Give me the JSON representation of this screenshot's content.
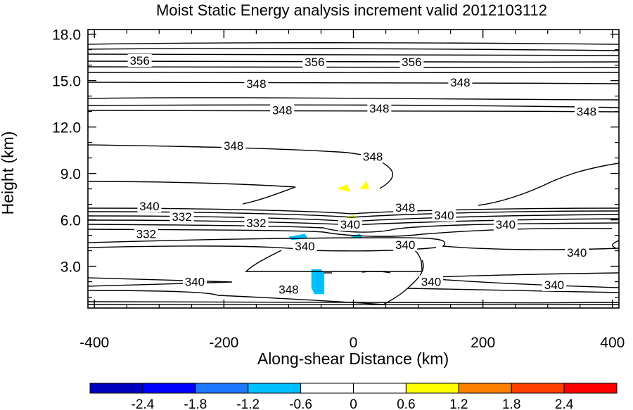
{
  "chart_data": {
    "type": "contour",
    "title": "Moist Static Energy analysis increment valid 2012103112",
    "xlabel": "Along-shear Distance (km)",
    "ylabel": "Height (km)",
    "xlim": [
      -410,
      410
    ],
    "ylim": [
      0.3,
      18.3
    ],
    "x_ticks": [
      -400,
      -200,
      0,
      200,
      400
    ],
    "x_tick_labels": [
      "-400",
      "-200",
      "0",
      "200",
      "400"
    ],
    "y_ticks": [
      3,
      6,
      9,
      12,
      15,
      18
    ],
    "y_tick_labels": [
      "3.0",
      "6.0",
      "9.0",
      "12.0",
      "15.0",
      "18.0"
    ],
    "contour_labels": [
      {
        "text": "356",
        "x": -330,
        "y": 16.3
      },
      {
        "text": "356",
        "x": -60,
        "y": 16.2
      },
      {
        "text": "356",
        "x": 90,
        "y": 16.2
      },
      {
        "text": "348",
        "x": -150,
        "y": 14.8
      },
      {
        "text": "348",
        "x": 165,
        "y": 14.9
      },
      {
        "text": "348",
        "x": -110,
        "y": 13.1
      },
      {
        "text": "348",
        "x": 40,
        "y": 13.2
      },
      {
        "text": "348",
        "x": 360,
        "y": 13.0
      },
      {
        "text": "348",
        "x": -185,
        "y": 10.8
      },
      {
        "text": "348",
        "x": 30,
        "y": 10.1
      },
      {
        "text": "340",
        "x": -315,
        "y": 6.9
      },
      {
        "text": "332",
        "x": -265,
        "y": 6.2
      },
      {
        "text": "332",
        "x": -320,
        "y": 5.1
      },
      {
        "text": "332",
        "x": -150,
        "y": 5.8
      },
      {
        "text": "340",
        "x": -5,
        "y": 5.7
      },
      {
        "text": "348",
        "x": 80,
        "y": 6.8
      },
      {
        "text": "340",
        "x": 140,
        "y": 6.3
      },
      {
        "text": "340",
        "x": 235,
        "y": 5.7
      },
      {
        "text": "340",
        "x": -75,
        "y": 4.3
      },
      {
        "text": "340",
        "x": 80,
        "y": 4.4
      },
      {
        "text": "340",
        "x": 345,
        "y": 3.9
      },
      {
        "text": "340",
        "x": -245,
        "y": 2.0
      },
      {
        "text": "348",
        "x": -100,
        "y": 1.5
      },
      {
        "text": "340",
        "x": 120,
        "y": 2.0
      },
      {
        "text": "340",
        "x": 310,
        "y": 1.8
      }
    ],
    "shaded_regions": [
      {
        "range": "0.6 to 1.2",
        "color": "#ffff00",
        "points": [
          [
            -25,
            8.0
          ],
          [
            -10,
            8.3
          ],
          [
            -5,
            7.8
          ]
        ]
      },
      {
        "range": "0.6 to 1.2",
        "color": "#ffff00",
        "points": [
          [
            10,
            8.0
          ],
          [
            20,
            8.5
          ],
          [
            25,
            8.0
          ]
        ]
      },
      {
        "range": "0.6 to 1.2",
        "color": "#ffff00",
        "points": [
          [
            -15,
            6.1
          ],
          [
            0,
            6.3
          ],
          [
            5,
            6.1
          ],
          [
            -5,
            5.9
          ]
        ]
      },
      {
        "range": "-1.2 to -0.6",
        "color": "#00bfff",
        "points": [
          [
            -65,
            2.8
          ],
          [
            -50,
            2.8
          ],
          [
            -45,
            2.5
          ],
          [
            -45,
            1.2
          ],
          [
            -60,
            1.2
          ],
          [
            -65,
            1.6
          ]
        ]
      },
      {
        "range": "-0.6 to 0",
        "color": "#00bfff",
        "points": [
          [
            -100,
            4.9
          ],
          [
            -75,
            5.1
          ],
          [
            -70,
            4.8
          ],
          [
            -95,
            4.7
          ]
        ]
      },
      {
        "range": "-0.6 to 0",
        "color": "#00bfff",
        "points": [
          [
            -5,
            4.9
          ],
          [
            10,
            5.1
          ],
          [
            15,
            4.8
          ]
        ]
      }
    ],
    "colorbar": {
      "levels": [
        "-2.4",
        "-1.8",
        "-1.2",
        "-0.6",
        "0",
        "0.6",
        "1.2",
        "1.8",
        "2.4"
      ],
      "colors": [
        "#0000bf",
        "#0000ff",
        "#1e78ff",
        "#00bfff",
        "#ffffff",
        "#ffffff",
        "#ffff00",
        "#ff8000",
        "#ff4000",
        "#ff0000"
      ]
    }
  }
}
